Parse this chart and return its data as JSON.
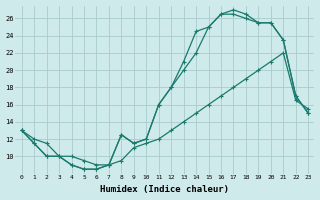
{
  "xlabel": "Humidex (Indice chaleur)",
  "bg_color": "#ceeaea",
  "grid_color": "#a8cccc",
  "line_color": "#1a7a6e",
  "xlim": [
    -0.5,
    23.5
  ],
  "ylim": [
    8,
    27.5
  ],
  "xticks": [
    0,
    1,
    2,
    3,
    4,
    5,
    6,
    7,
    8,
    9,
    10,
    11,
    12,
    13,
    14,
    15,
    16,
    17,
    18,
    19,
    20,
    21,
    22,
    23
  ],
  "yticks": [
    10,
    12,
    14,
    16,
    18,
    20,
    22,
    24,
    26
  ],
  "line1_x": [
    0,
    1,
    2,
    3,
    4,
    5,
    6,
    7,
    8,
    9,
    10,
    11,
    12,
    13,
    14,
    15,
    16,
    17,
    18,
    19,
    20,
    21,
    22,
    23
  ],
  "line1_y": [
    13,
    11.5,
    10,
    10,
    9,
    8.5,
    8.5,
    9,
    12.5,
    11.5,
    12,
    16,
    18,
    21,
    24.5,
    25,
    26.5,
    27,
    26.5,
    25.5,
    25.5,
    23.5,
    17,
    15
  ],
  "line2_x": [
    0,
    1,
    2,
    3,
    4,
    5,
    6,
    7,
    8,
    9,
    10,
    11,
    12,
    13,
    14,
    15,
    16,
    17,
    18,
    19,
    20,
    21,
    22,
    23
  ],
  "line2_y": [
    13,
    11.5,
    10,
    10,
    9,
    8.5,
    8.5,
    9,
    12.5,
    11.5,
    12,
    16,
    18,
    20,
    22,
    25,
    26.5,
    26.5,
    26,
    25.5,
    25.5,
    23.5,
    17,
    15
  ],
  "line3_x": [
    0,
    1,
    2,
    3,
    4,
    5,
    6,
    7,
    8,
    9,
    10,
    11,
    12,
    13,
    14,
    15,
    16,
    17,
    18,
    19,
    20,
    21,
    22,
    23
  ],
  "line3_y": [
    13,
    12,
    11.5,
    10,
    10,
    9.5,
    9,
    9,
    9.5,
    11,
    11.5,
    12,
    13,
    14,
    15,
    16,
    17,
    18,
    19,
    20,
    21,
    22,
    16.5,
    15.5
  ]
}
